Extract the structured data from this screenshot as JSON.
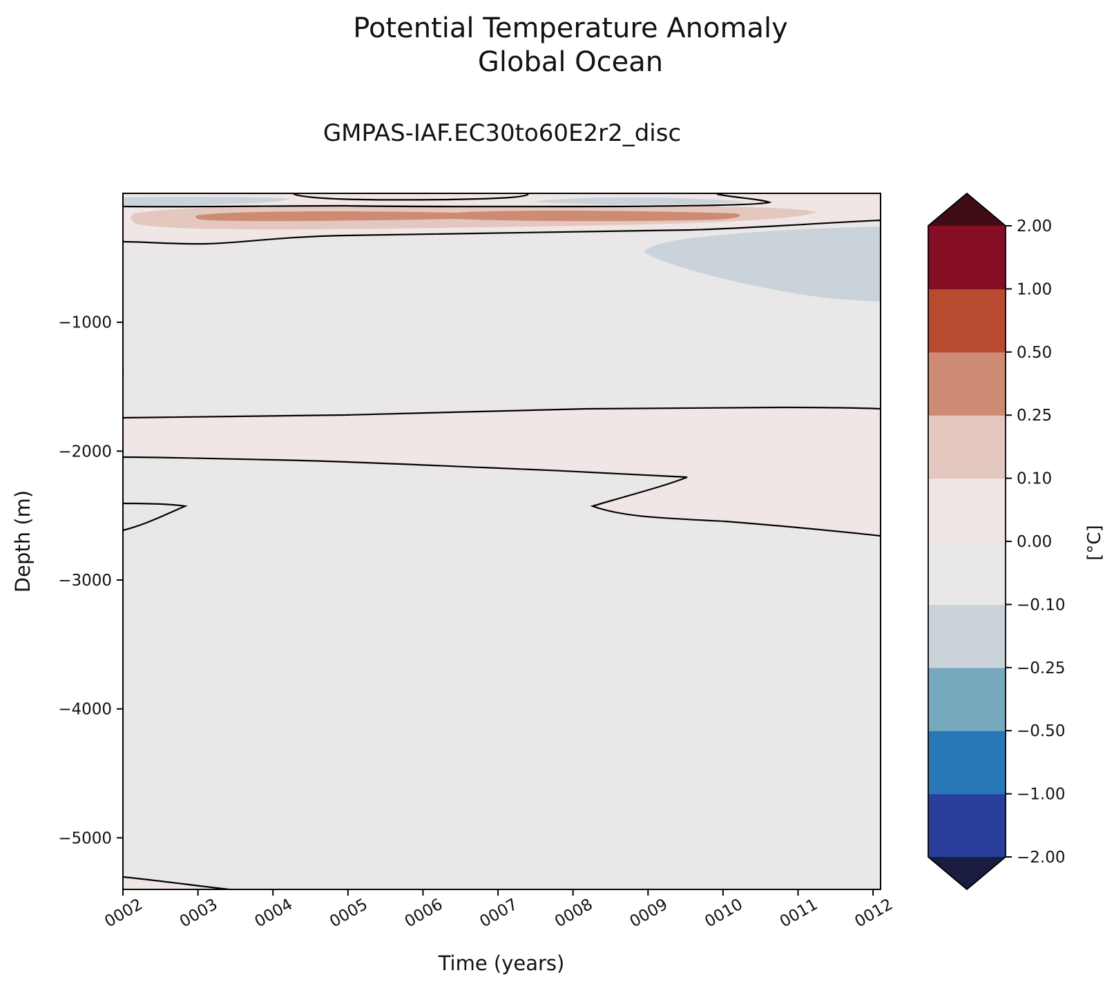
{
  "chart_data": {
    "type": "contourf",
    "title": "Potential Temperature Anomaly",
    "title_line2": "Global Ocean",
    "subtitle": "GMPAS-IAF.EC30to60E2r2_disc",
    "xlabel": "Time (years)",
    "ylabel": "Depth (m)",
    "x_ticks": [
      "0002",
      "0003",
      "0004",
      "0005",
      "0006",
      "0007",
      "0008",
      "0009",
      "0010",
      "0011",
      "0012"
    ],
    "y_ticks": [
      -1000,
      -2000,
      -3000,
      -4000,
      -5000
    ],
    "y_tick_labels": [
      "−1000",
      "−2000",
      "−3000",
      "−4000",
      "−5000"
    ],
    "xlim": [
      2.0,
      12.1
    ],
    "ylim": [
      -5400,
      0
    ],
    "colorbar": {
      "label": "[°C]",
      "levels": [
        "-2.00",
        "-1.00",
        "-0.50",
        "-0.25",
        "-0.10",
        "0.00",
        "0.10",
        "0.25",
        "0.50",
        "1.00",
        "2.00"
      ],
      "tick_labels": [
        "−2.00",
        "−1.00",
        "−0.50",
        "−0.25",
        "−0.10",
        "0.00",
        "0.10",
        "0.25",
        "0.50",
        "1.00",
        "2.00"
      ],
      "colors": [
        "#2a3f9c",
        "#2878b8",
        "#76a8be",
        "#c9d3d9",
        "#e9e7e8",
        "#f0e6e5",
        "#e4c8c0",
        "#cd8b73",
        "#b84a30",
        "#850e25"
      ],
      "extend_low_color": "#1a1c40",
      "extend_high_color": "#400c15"
    },
    "regions": [
      {
        "name": "near-zero negative background",
        "level_range": [
          "-0.10",
          "0.00"
        ]
      },
      {
        "name": "upper warm band",
        "level_range": [
          "0.00",
          "0.10"
        ],
        "depth_range": [
          -450,
          -30
        ],
        "time_range": [
          2.0,
          12.1
        ]
      },
      {
        "name": "upper warm core",
        "level_range": [
          "0.10",
          "0.25"
        ],
        "depth_range": [
          -290,
          -110
        ],
        "time_range": [
          2.1,
          11.2
        ]
      },
      {
        "name": "upper warm max",
        "level_range": [
          "0.25",
          "0.50"
        ],
        "depth_range": [
          -220,
          -150
        ],
        "time_range": [
          3.0,
          10.2
        ]
      },
      {
        "name": "upper-right cool patch",
        "level_range": [
          "-0.25",
          "-0.10"
        ],
        "depth_range": [
          -840,
          -250
        ],
        "time_range": [
          8.9,
          12.1
        ]
      },
      {
        "name": "mid-depth warm band",
        "level_range": [
          "0.00",
          "0.10"
        ],
        "depth_range": [
          -2650,
          -1670
        ],
        "time_range": [
          2.0,
          12.1
        ]
      },
      {
        "name": "bottom warm sliver",
        "level_range": [
          "0.00",
          "0.10"
        ],
        "depth_range": [
          -5400,
          -5280
        ],
        "time_range": [
          2.0,
          3.6
        ]
      }
    ]
  }
}
